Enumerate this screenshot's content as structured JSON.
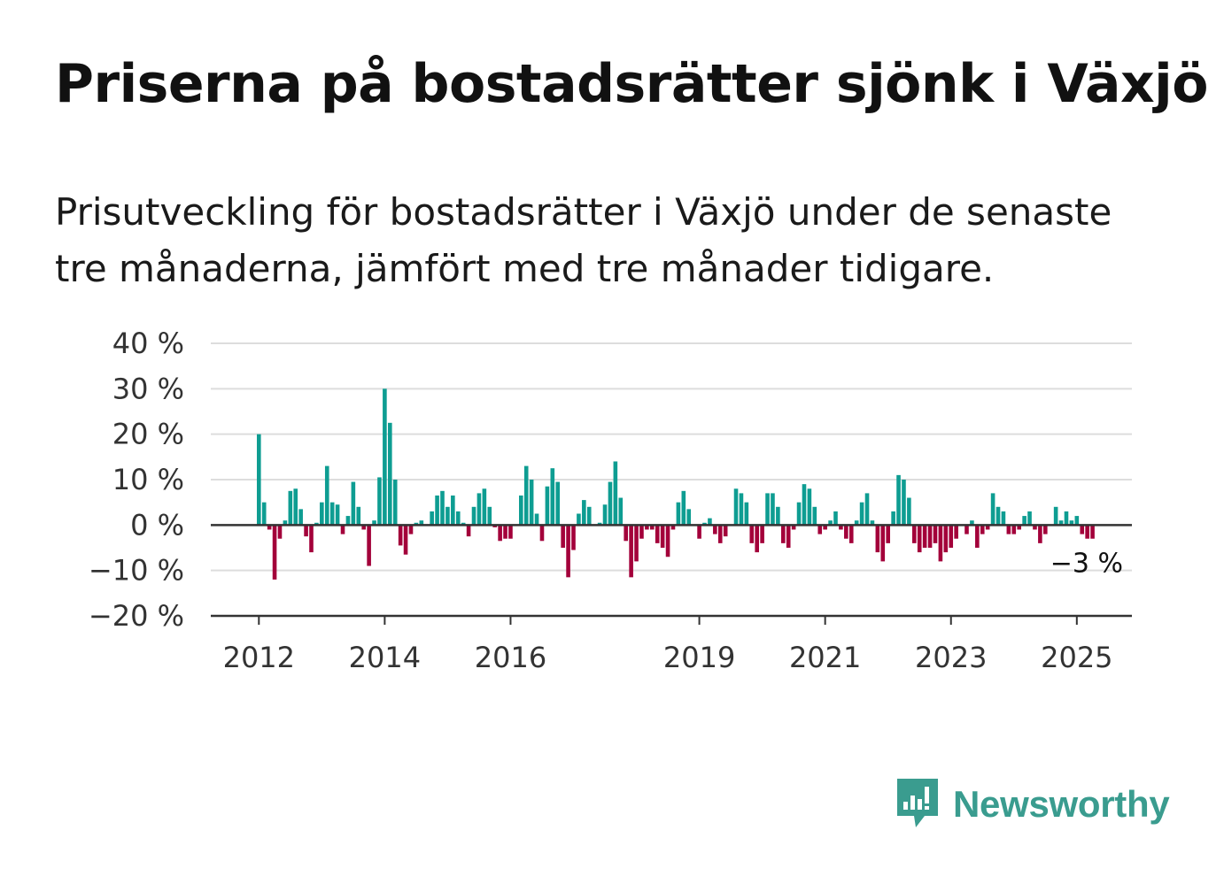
{
  "header": {
    "title": "Priserna på bostadsrätter sjönk i Växjö",
    "subtitle": "Prisutveckling för bostadsrätter i Växjö under de senaste tre månaderna, jämfört med tre månader tidigare."
  },
  "brand": {
    "name": "Newsworthy",
    "icon": "newsworthy-logo-icon",
    "color": "#3a9c8f"
  },
  "chart_data": {
    "type": "bar",
    "title": "",
    "xlabel": "",
    "ylabel": "",
    "ylim": [
      -20,
      40
    ],
    "yticks": [
      40,
      30,
      20,
      10,
      0,
      -10,
      -20
    ],
    "ytick_labels": [
      "40 %",
      "30 %",
      "20 %",
      "10 %",
      "0 %",
      "−10 %",
      "−20 %"
    ],
    "xtick_labels": [
      "2012",
      "2014",
      "2016",
      "2019",
      "2021",
      "2023",
      "2025"
    ],
    "xtick_dates": [
      "2012-01",
      "2014-01",
      "2016-01",
      "2019-01",
      "2021-01",
      "2023-01",
      "2025-01"
    ],
    "grid": true,
    "colors": {
      "positive": "#0e9d92",
      "negative": "#a3003a",
      "grid": "#dddddd",
      "axis": "#333333"
    },
    "end_label": "−3 %",
    "series": [
      {
        "values": [
          20,
          5,
          -1,
          -12,
          -3,
          1,
          7.5,
          8,
          3.5,
          -2.5,
          -6,
          0.5,
          5,
          13,
          5,
          4.5,
          -2,
          2,
          9.5,
          4,
          -1,
          -9,
          1,
          10.5,
          30,
          22.5,
          10,
          -4.5,
          -6.5,
          -2,
          0.5,
          1,
          0,
          3,
          6.5,
          7.5,
          4,
          6.5,
          3,
          0.5,
          -2.5,
          4,
          7,
          8,
          4,
          -0.5,
          -3.5,
          -3,
          -3,
          0,
          6.5,
          13,
          10,
          2.5,
          -3.5,
          8.5,
          12.5,
          9.5,
          -5,
          -11.5,
          -5.5,
          2.5,
          5.5,
          4,
          0,
          0.5,
          4.5,
          9.5,
          14,
          6,
          -3.5,
          -11.5,
          -8,
          -3,
          -1,
          -1,
          -4,
          -5,
          -7,
          -1,
          5,
          7.5,
          3.5,
          0,
          -3,
          0.5,
          1.5,
          -2,
          -4,
          -2.5,
          0,
          8,
          7,
          5,
          -4,
          -6,
          -4,
          7,
          7,
          4,
          -4,
          -5,
          -1,
          5,
          9,
          8,
          4,
          -2,
          -1,
          1,
          3,
          -1,
          -3,
          -4,
          1,
          5,
          7,
          1,
          -6,
          -8,
          -4,
          3,
          11,
          10,
          6,
          -4,
          -6,
          -5,
          -5,
          -4,
          -8,
          -6,
          -5,
          -3,
          0,
          -2,
          1,
          -5,
          -2,
          -1,
          7,
          4,
          3,
          -2,
          -2,
          -1,
          2,
          3,
          -1,
          -4,
          -2,
          0,
          4,
          1,
          3,
          1,
          2,
          -2,
          -3,
          -3
        ]
      }
    ]
  }
}
